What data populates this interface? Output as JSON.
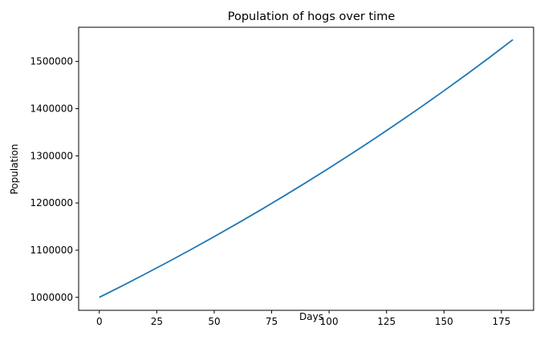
{
  "chart_data": {
    "type": "line",
    "title": "Population of hogs over time",
    "xlabel": "Days",
    "ylabel": "Population",
    "xlim": [
      -9,
      189
    ],
    "ylim": [
      972500,
      1572500
    ],
    "xticks": [
      0,
      25,
      50,
      75,
      100,
      125,
      150,
      175
    ],
    "yticks": [
      1000000,
      1100000,
      1200000,
      1300000,
      1400000,
      1500000
    ],
    "grid": false,
    "series": [
      {
        "color": "#1f77b4",
        "x": [
          0,
          10,
          20,
          30,
          40,
          50,
          60,
          70,
          80,
          90,
          100,
          110,
          120,
          130,
          140,
          150,
          160,
          170,
          180
        ],
        "y": [
          1000000,
          1024507,
          1049615,
          1075338,
          1101693,
          1128693,
          1156355,
          1184695,
          1213729,
          1243475,
          1273950,
          1305171,
          1337158,
          1369929,
          1403503,
          1437900,
          1473140,
          1509243,
          1546231
        ]
      }
    ]
  }
}
